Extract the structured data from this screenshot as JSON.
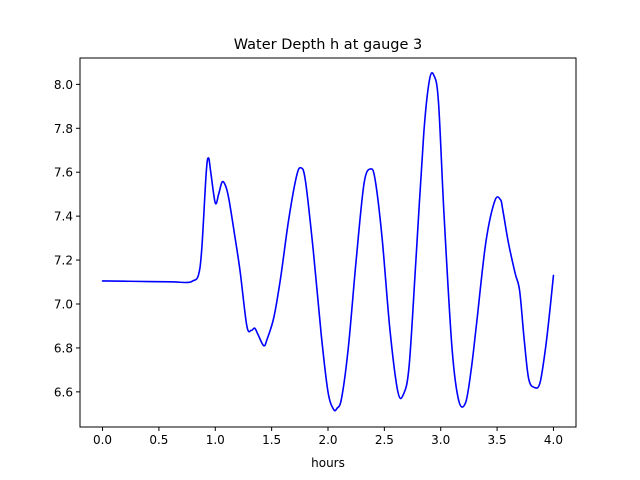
{
  "chart_data": {
    "type": "line",
    "title": "Water Depth h at gauge 3",
    "xlabel": "hours",
    "ylabel": "",
    "xlim": [
      -0.2,
      4.2
    ],
    "ylim": [
      6.44,
      8.12
    ],
    "grid": false,
    "x_ticks": [
      0.0,
      0.5,
      1.0,
      1.5,
      2.0,
      2.5,
      3.0,
      3.5,
      4.0
    ],
    "x_tick_labels": [
      "0.0",
      "0.5",
      "1.0",
      "1.5",
      "2.0",
      "2.5",
      "3.0",
      "3.5",
      "4.0"
    ],
    "y_ticks": [
      6.6,
      6.8,
      7.0,
      7.2,
      7.4,
      7.6,
      7.8,
      8.0
    ],
    "y_tick_labels": [
      "6.6",
      "6.8",
      "7.0",
      "7.2",
      "7.4",
      "7.6",
      "7.8",
      "8.0"
    ],
    "series": [
      {
        "color": "#0000ff",
        "x": [
          0.0,
          0.3,
          0.6,
          0.75,
          0.8,
          0.85,
          0.88,
          0.92,
          0.94,
          0.96,
          1.0,
          1.03,
          1.06,
          1.09,
          1.12,
          1.17,
          1.22,
          1.28,
          1.32,
          1.35,
          1.38,
          1.43,
          1.46,
          1.52,
          1.58,
          1.65,
          1.72,
          1.76,
          1.8,
          1.87,
          1.94,
          2.0,
          2.05,
          2.08,
          2.12,
          2.18,
          2.25,
          2.32,
          2.38,
          2.42,
          2.48,
          2.55,
          2.62,
          2.67,
          2.72,
          2.78,
          2.85,
          2.9,
          2.94,
          2.98,
          3.03,
          3.1,
          3.16,
          3.22,
          3.27,
          3.32,
          3.4,
          3.48,
          3.53,
          3.55,
          3.6,
          3.66,
          3.7,
          3.74,
          3.78,
          3.83,
          3.88,
          3.93,
          3.97,
          4.0
        ],
        "y": [
          7.105,
          7.103,
          7.101,
          7.098,
          7.105,
          7.13,
          7.25,
          7.6,
          7.665,
          7.6,
          7.46,
          7.5,
          7.555,
          7.54,
          7.48,
          7.32,
          7.15,
          6.9,
          6.88,
          6.89,
          6.86,
          6.81,
          6.84,
          6.94,
          7.12,
          7.38,
          7.58,
          7.62,
          7.56,
          7.24,
          6.86,
          6.6,
          6.52,
          6.525,
          6.57,
          6.8,
          7.2,
          7.55,
          7.615,
          7.56,
          7.3,
          6.88,
          6.6,
          6.59,
          6.72,
          7.2,
          7.78,
          8.02,
          8.04,
          7.92,
          7.4,
          6.8,
          6.56,
          6.55,
          6.7,
          6.92,
          7.28,
          7.47,
          7.475,
          7.43,
          7.28,
          7.14,
          7.06,
          6.84,
          6.66,
          6.62,
          6.64,
          6.8,
          6.98,
          7.13
        ]
      }
    ]
  }
}
